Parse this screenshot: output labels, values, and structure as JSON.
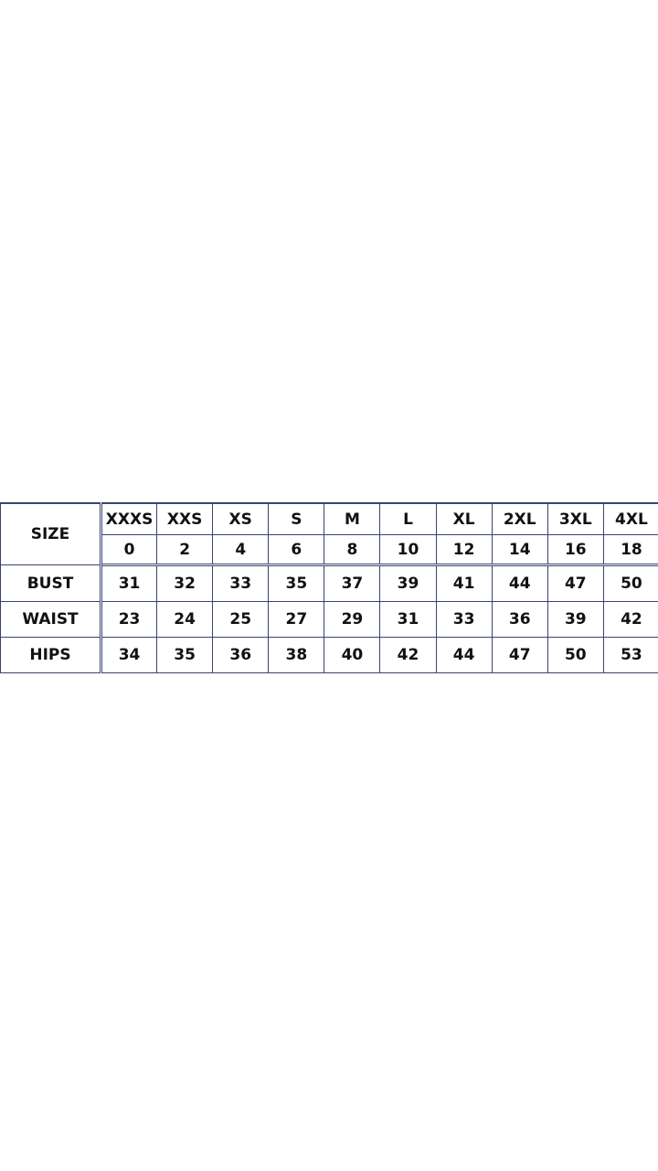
{
  "size_chart": {
    "size_label": "SIZE",
    "letter_sizes": [
      "XXXS",
      "XXS",
      "XS",
      "S",
      "M",
      "L",
      "XL",
      "2XL",
      "3XL",
      "4XL"
    ],
    "numeric_sizes": [
      "0",
      "2",
      "4",
      "6",
      "8",
      "10",
      "12",
      "14",
      "16",
      "18"
    ],
    "rows": [
      {
        "label": "BUST",
        "values": [
          "31",
          "32",
          "33",
          "35",
          "37",
          "39",
          "41",
          "44",
          "47",
          "50"
        ]
      },
      {
        "label": "WAIST",
        "values": [
          "23",
          "24",
          "25",
          "27",
          "29",
          "31",
          "33",
          "36",
          "39",
          "42"
        ]
      },
      {
        "label": "HIPS",
        "values": [
          "34",
          "35",
          "36",
          "38",
          "40",
          "42",
          "44",
          "47",
          "50",
          "53"
        ]
      }
    ],
    "border_color": "#3a4270"
  }
}
